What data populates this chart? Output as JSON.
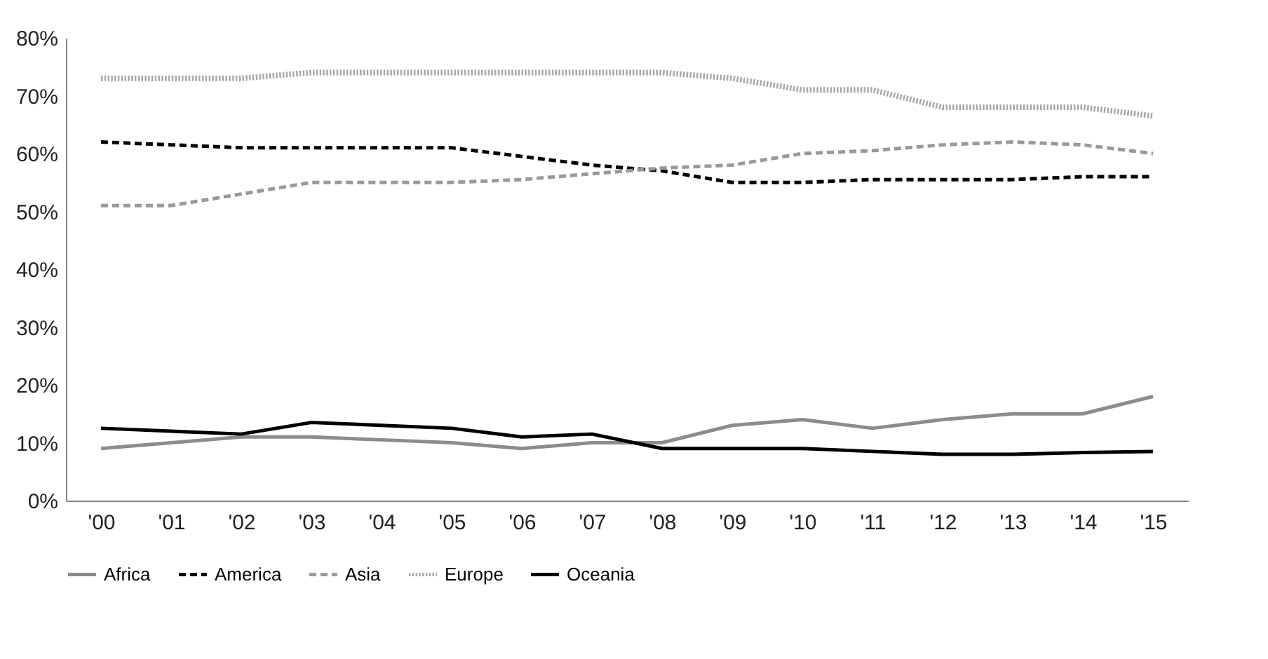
{
  "chart_data": {
    "type": "line",
    "categories": [
      "'00",
      "'01",
      "'02",
      "'03",
      "'04",
      "'05",
      "'06",
      "'07",
      "'08",
      "'09",
      "'10",
      "'11",
      "'12",
      "'13",
      "'14",
      "'15"
    ],
    "series": [
      {
        "name": "Africa",
        "color": "#8c8c8c",
        "line_style": "solid",
        "values": [
          9,
          10,
          11,
          11,
          10.5,
          10,
          9,
          10,
          10,
          13,
          14,
          12.5,
          14,
          15,
          15,
          18
        ]
      },
      {
        "name": "America",
        "color": "#000000",
        "line_style": "dashed",
        "values": [
          62,
          61.5,
          61,
          61,
          61,
          61,
          59.5,
          58,
          57,
          55,
          55,
          55.5,
          55.5,
          55.5,
          56,
          56
        ]
      },
      {
        "name": "Asia",
        "color": "#999999",
        "line_style": "dashed",
        "values": [
          51,
          51,
          53,
          55,
          55,
          55,
          55.5,
          56.5,
          57.5,
          58,
          60,
          60.5,
          61.5,
          62,
          61.5,
          60
        ]
      },
      {
        "name": "Europe",
        "color": "#a6a6a6",
        "line_style": "dotted",
        "values": [
          73,
          73,
          73,
          74,
          74,
          74,
          74,
          74,
          74,
          73,
          71,
          71,
          68,
          68,
          68,
          66.5
        ]
      },
      {
        "name": "Oceania",
        "color": "#000000",
        "line_style": "solid",
        "values": [
          12.5,
          12,
          11.5,
          13.5,
          13,
          12.5,
          11,
          11.5,
          9,
          9,
          9,
          8.5,
          8,
          8,
          8.3,
          8.5
        ]
      }
    ],
    "ylim": [
      0,
      80
    ],
    "yticks": [
      {
        "value": 0,
        "label": "0%"
      },
      {
        "value": 10,
        "label": "10%"
      },
      {
        "value": 20,
        "label": "20%"
      },
      {
        "value": 30,
        "label": "30%"
      },
      {
        "value": 40,
        "label": "40%"
      },
      {
        "value": 50,
        "label": "50%"
      },
      {
        "value": 60,
        "label": "60%"
      },
      {
        "value": 70,
        "label": "70%"
      },
      {
        "value": 80,
        "label": "80%"
      }
    ],
    "grid": false,
    "legend": "bottom",
    "marker": "none"
  }
}
